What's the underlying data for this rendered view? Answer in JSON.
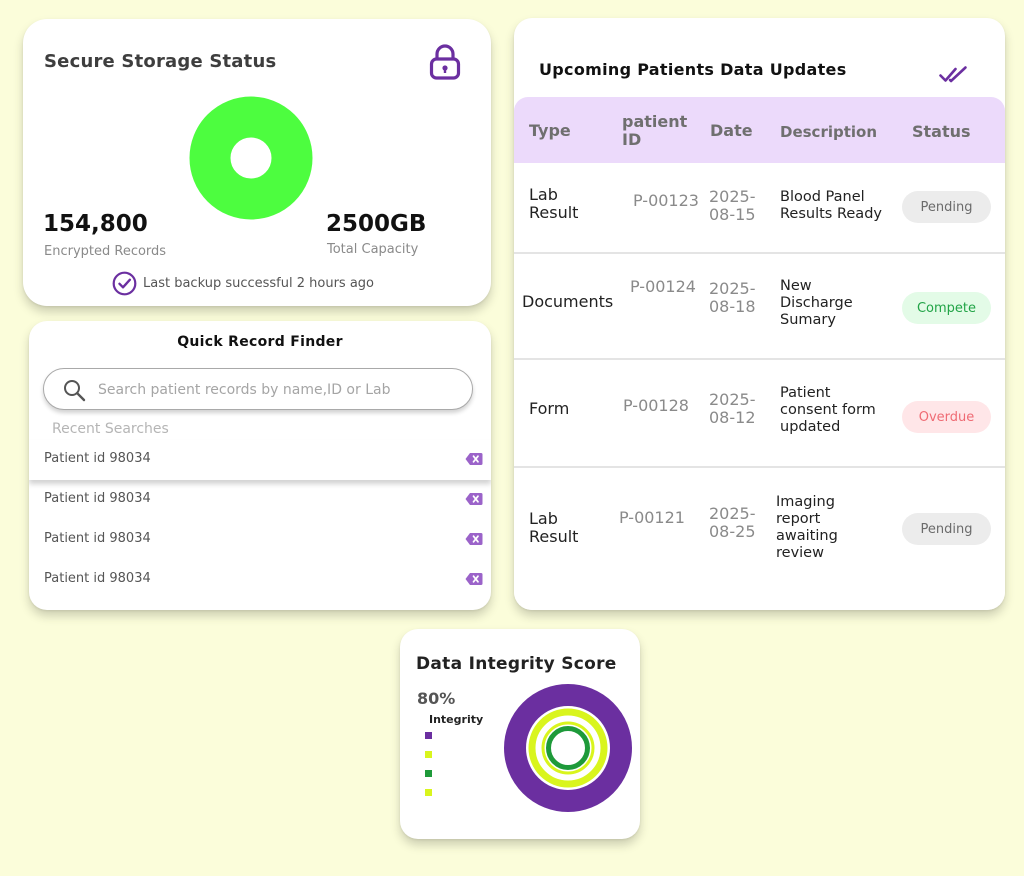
{
  "storage": {
    "title": "Secure Storage Status",
    "icon": "lock-icon",
    "records_value": "154,800",
    "records_label": "Encrypted Records",
    "capacity_value": "2500GB",
    "capacity_label": "Total Capacity",
    "backup_text": "Last backup successful 2 hours ago",
    "donut_color": "#4dfd3f"
  },
  "finder": {
    "title": "Quick Record Finder",
    "search_placeholder": "Search patient records by name,ID or Lab",
    "search_value": "",
    "recent_label": "Recent Searches",
    "recent": [
      {
        "label": "Patient id 98034"
      },
      {
        "label": "Patient id 98034"
      },
      {
        "label": "Patient id 98034"
      },
      {
        "label": "Patient id 98034"
      }
    ]
  },
  "updates": {
    "title": "Upcoming Patients Data Updates",
    "columns": {
      "type": "Type",
      "patient_id": "patient ID",
      "date": "Date",
      "description": "Description",
      "status": "Status"
    },
    "rows": [
      {
        "type": "Lab Result",
        "patient_id": "P-00123",
        "date": "2025-08-15",
        "description": "Blood Panel Results Ready",
        "status": "Pending",
        "status_kind": "pending"
      },
      {
        "type": "Documents",
        "patient_id": "P-00124",
        "date": "2025-08-18",
        "description": "New Discharge Sumary",
        "status": "Compete",
        "status_kind": "complete"
      },
      {
        "type": "Form",
        "patient_id": "P-00128",
        "date": "2025-08-12",
        "description": "Patient consent form updated",
        "status": "Overdue",
        "status_kind": "overdue"
      },
      {
        "type": "Lab Result",
        "patient_id": "P-00121",
        "date": "2025-08-25",
        "description": "Imaging report awaiting review",
        "status": "Pending",
        "status_kind": "pending"
      }
    ]
  },
  "integrity": {
    "title": "Data Integrity Score",
    "score": "80%",
    "legend_title": "Integrity",
    "legend_colors": [
      "#6b2fa0",
      "#d9f51d",
      "#1e9a3a",
      "#d9f51d"
    ]
  },
  "colors": {
    "accent_purple": "#6b2fa0",
    "background": "#fbfdda",
    "header_lavender": "#ecdafb"
  }
}
